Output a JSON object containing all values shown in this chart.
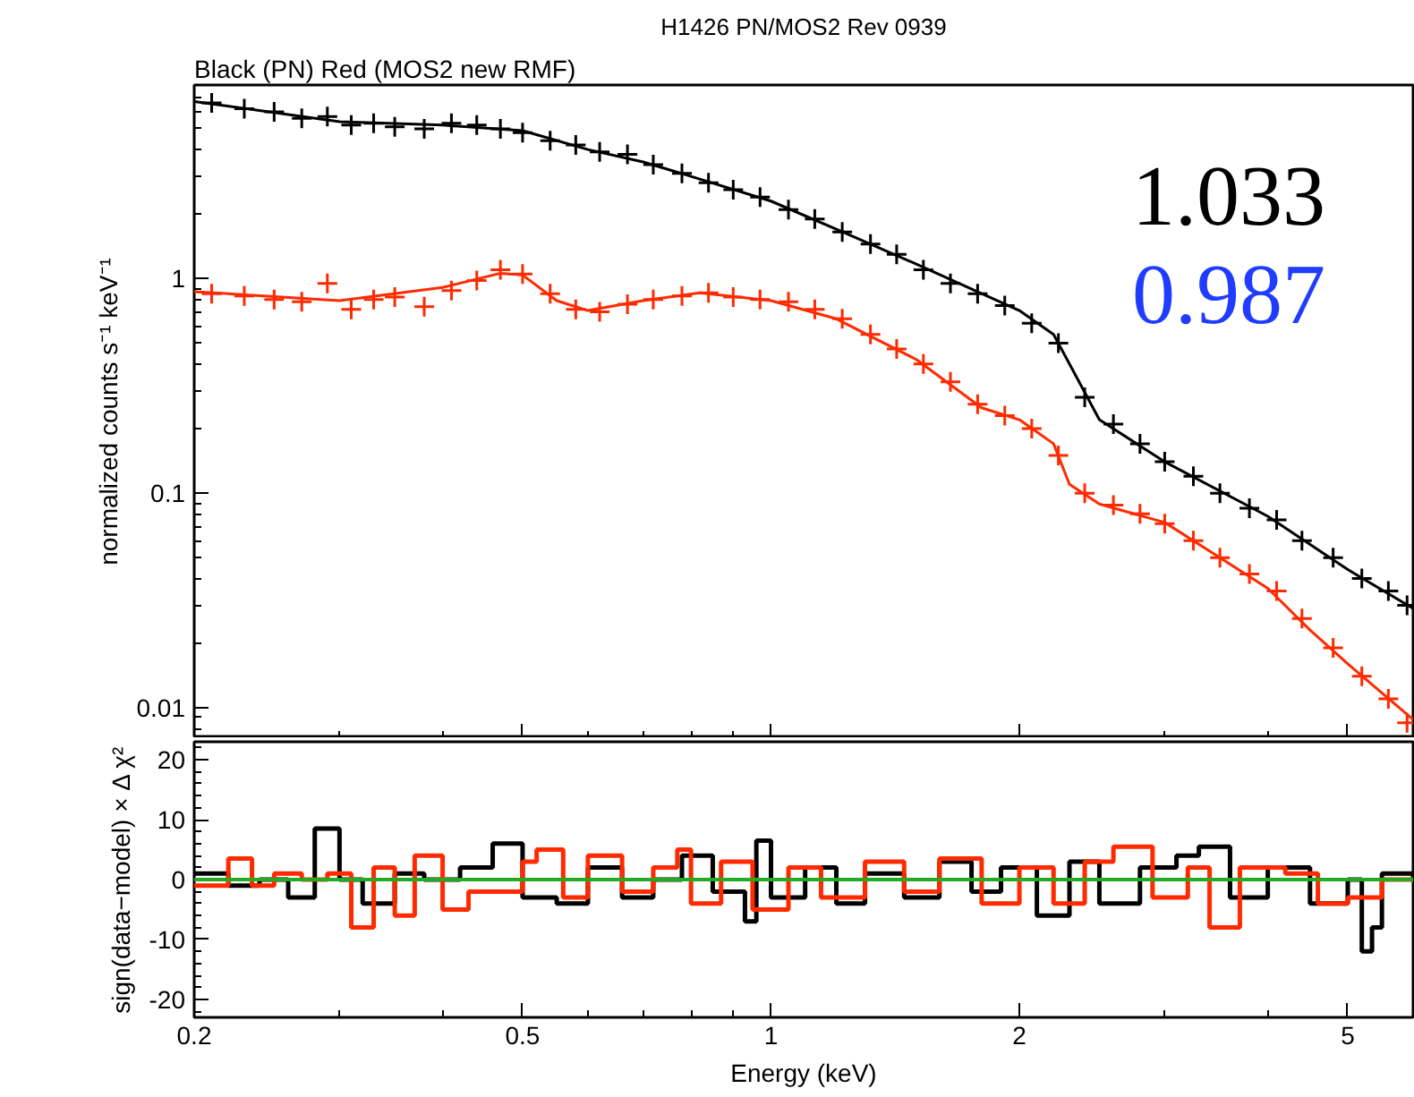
{
  "chart_data": [
    {
      "type": "scatter",
      "title": "H1426 PN/MOS2 Rev 0939",
      "subtitle": "Black (PN) Red (MOS2 new RMF)",
      "ylabel": "normalized counts s⁻¹ keV⁻¹",
      "annotations": [
        "1.033",
        "0.987"
      ],
      "log": "xy",
      "xlim": [
        0.2,
        6.0
      ],
      "ylim": [
        0.0072,
        8
      ],
      "xticks": [
        0.2,
        0.5,
        1,
        2,
        5
      ],
      "yticks": [
        0.01,
        0.1,
        1
      ],
      "tick_labels": "y",
      "grid": false,
      "series": [
        {
          "type": "scatter",
          "marker": "cross",
          "color": "#000000",
          "x": [
            0.21,
            0.23,
            0.25,
            0.27,
            0.29,
            0.31,
            0.33,
            0.35,
            0.38,
            0.41,
            0.44,
            0.47,
            0.5,
            0.54,
            0.58,
            0.62,
            0.67,
            0.72,
            0.78,
            0.84,
            0.9,
            0.97,
            1.05,
            1.13,
            1.22,
            1.32,
            1.42,
            1.53,
            1.65,
            1.78,
            1.92,
            2.07,
            2.23,
            2.4,
            2.6,
            2.8,
            3.0,
            3.25,
            3.5,
            3.8,
            4.1,
            4.4,
            4.8,
            5.2,
            5.6,
            5.9
          ],
          "values": [
            6.6,
            6.2,
            6.0,
            5.6,
            5.7,
            5.2,
            5.3,
            5.1,
            5.0,
            5.3,
            5.2,
            5.0,
            4.8,
            4.4,
            4.2,
            3.9,
            3.8,
            3.4,
            3.1,
            2.8,
            2.6,
            2.4,
            2.1,
            1.9,
            1.65,
            1.45,
            1.3,
            1.1,
            0.95,
            0.85,
            0.75,
            0.62,
            0.5,
            0.28,
            0.21,
            0.17,
            0.14,
            0.12,
            0.1,
            0.085,
            0.075,
            0.06,
            0.05,
            0.04,
            0.035,
            0.03
          ]
        },
        {
          "type": "line",
          "marker": "none",
          "color": "#000000",
          "x": [
            0.2,
            0.3,
            0.4,
            0.5,
            0.6,
            0.7,
            0.8,
            1.0,
            1.2,
            1.5,
            2.0,
            2.2,
            2.3,
            2.5,
            3,
            4,
            5,
            6
          ],
          "values": [
            6.7,
            5.4,
            5.2,
            4.9,
            4.0,
            3.5,
            3.0,
            2.3,
            1.7,
            1.17,
            0.71,
            0.55,
            0.4,
            0.22,
            0.14,
            0.078,
            0.044,
            0.029
          ]
        },
        {
          "type": "scatter",
          "marker": "cross",
          "color": "#ff2a00",
          "x": [
            0.21,
            0.23,
            0.25,
            0.27,
            0.29,
            0.31,
            0.33,
            0.35,
            0.38,
            0.41,
            0.44,
            0.47,
            0.5,
            0.54,
            0.58,
            0.62,
            0.67,
            0.72,
            0.78,
            0.84,
            0.9,
            0.97,
            1.05,
            1.13,
            1.22,
            1.32,
            1.42,
            1.53,
            1.65,
            1.78,
            1.92,
            2.07,
            2.23,
            2.4,
            2.6,
            2.8,
            3.0,
            3.25,
            3.5,
            3.8,
            4.1,
            4.4,
            4.8,
            5.2,
            5.6,
            5.9
          ],
          "values": [
            0.85,
            0.83,
            0.8,
            0.78,
            0.95,
            0.72,
            0.8,
            0.82,
            0.74,
            0.88,
            0.98,
            1.1,
            1.05,
            0.85,
            0.72,
            0.7,
            0.76,
            0.8,
            0.83,
            0.86,
            0.82,
            0.8,
            0.78,
            0.72,
            0.65,
            0.55,
            0.47,
            0.4,
            0.33,
            0.26,
            0.23,
            0.2,
            0.15,
            0.1,
            0.088,
            0.08,
            0.072,
            0.06,
            0.05,
            0.042,
            0.035,
            0.026,
            0.019,
            0.014,
            0.011,
            0.0085
          ]
        },
        {
          "type": "line",
          "marker": "none",
          "color": "#ff2a00",
          "x": [
            0.2,
            0.3,
            0.4,
            0.47,
            0.5,
            0.55,
            0.6,
            0.7,
            0.82,
            1.0,
            1.2,
            1.5,
            1.8,
            2.0,
            2.2,
            2.3,
            2.5,
            3,
            3.5,
            4,
            4.5,
            5,
            6
          ],
          "values": [
            0.87,
            0.79,
            0.91,
            1.06,
            1.04,
            0.79,
            0.71,
            0.79,
            0.86,
            0.79,
            0.65,
            0.42,
            0.25,
            0.22,
            0.17,
            0.11,
            0.089,
            0.073,
            0.05,
            0.036,
            0.023,
            0.016,
            0.0088
          ]
        }
      ]
    },
    {
      "type": "step",
      "xlabel": "Energy (keV)",
      "ylabel": "sign(data−model) × Δ χ²",
      "log": "x",
      "xlim": [
        0.2,
        6.0
      ],
      "ylim": [
        -23,
        23
      ],
      "xticks": [
        0.2,
        0.5,
        1,
        2,
        5
      ],
      "yticks": [
        -20,
        -10,
        0,
        10,
        20
      ],
      "grid": false,
      "ref_lines": [
        {
          "axis": "y",
          "value": 0,
          "color": "#22aa22"
        }
      ],
      "series": [
        {
          "color": "#000000",
          "x": [
            0.2,
            0.22,
            0.24,
            0.26,
            0.28,
            0.3,
            0.32,
            0.35,
            0.38,
            0.42,
            0.46,
            0.5,
            0.55,
            0.6,
            0.66,
            0.72,
            0.78,
            0.85,
            0.93,
            0.96,
            1.0,
            1.1,
            1.2,
            1.3,
            1.45,
            1.6,
            1.75,
            1.9,
            2.1,
            2.3,
            2.5,
            2.8,
            3.1,
            3.3,
            3.6,
            4.0,
            4.5,
            5.0,
            5.2,
            5.35,
            5.5,
            6.0
          ],
          "values": [
            1,
            -1,
            0,
            -3,
            8.5,
            0,
            -4,
            1,
            0,
            2,
            6,
            -3,
            -4,
            2,
            -3,
            0,
            4,
            -2,
            -7,
            6.5,
            -3,
            2,
            -4,
            1,
            -3,
            3,
            -2,
            2,
            -6,
            3,
            -4,
            2,
            4,
            5.5,
            -3,
            2,
            -4,
            0,
            -12,
            -8,
            1,
            0
          ]
        },
        {
          "color": "#ff2a00",
          "x": [
            0.2,
            0.22,
            0.235,
            0.25,
            0.27,
            0.29,
            0.31,
            0.33,
            0.35,
            0.37,
            0.4,
            0.43,
            0.46,
            0.5,
            0.52,
            0.56,
            0.6,
            0.66,
            0.72,
            0.77,
            0.8,
            0.87,
            0.95,
            1.05,
            1.15,
            1.3,
            1.45,
            1.6,
            1.8,
            2.0,
            2.2,
            2.4,
            2.6,
            2.9,
            3.2,
            3.4,
            3.7,
            4.2,
            4.6,
            5.0,
            5.5,
            6.0
          ],
          "values": [
            -1,
            3.5,
            -1,
            1,
            0,
            1,
            -8,
            2,
            -6,
            4,
            -5,
            -2,
            -2,
            3,
            5,
            -3,
            4,
            -2,
            2,
            5,
            -4,
            3,
            -5,
            2,
            -3,
            3,
            -2,
            3.5,
            -4,
            2,
            -4,
            3,
            5.5,
            -3,
            2,
            -8,
            2,
            1,
            -4,
            -3,
            0,
            0
          ]
        }
      ]
    }
  ]
}
